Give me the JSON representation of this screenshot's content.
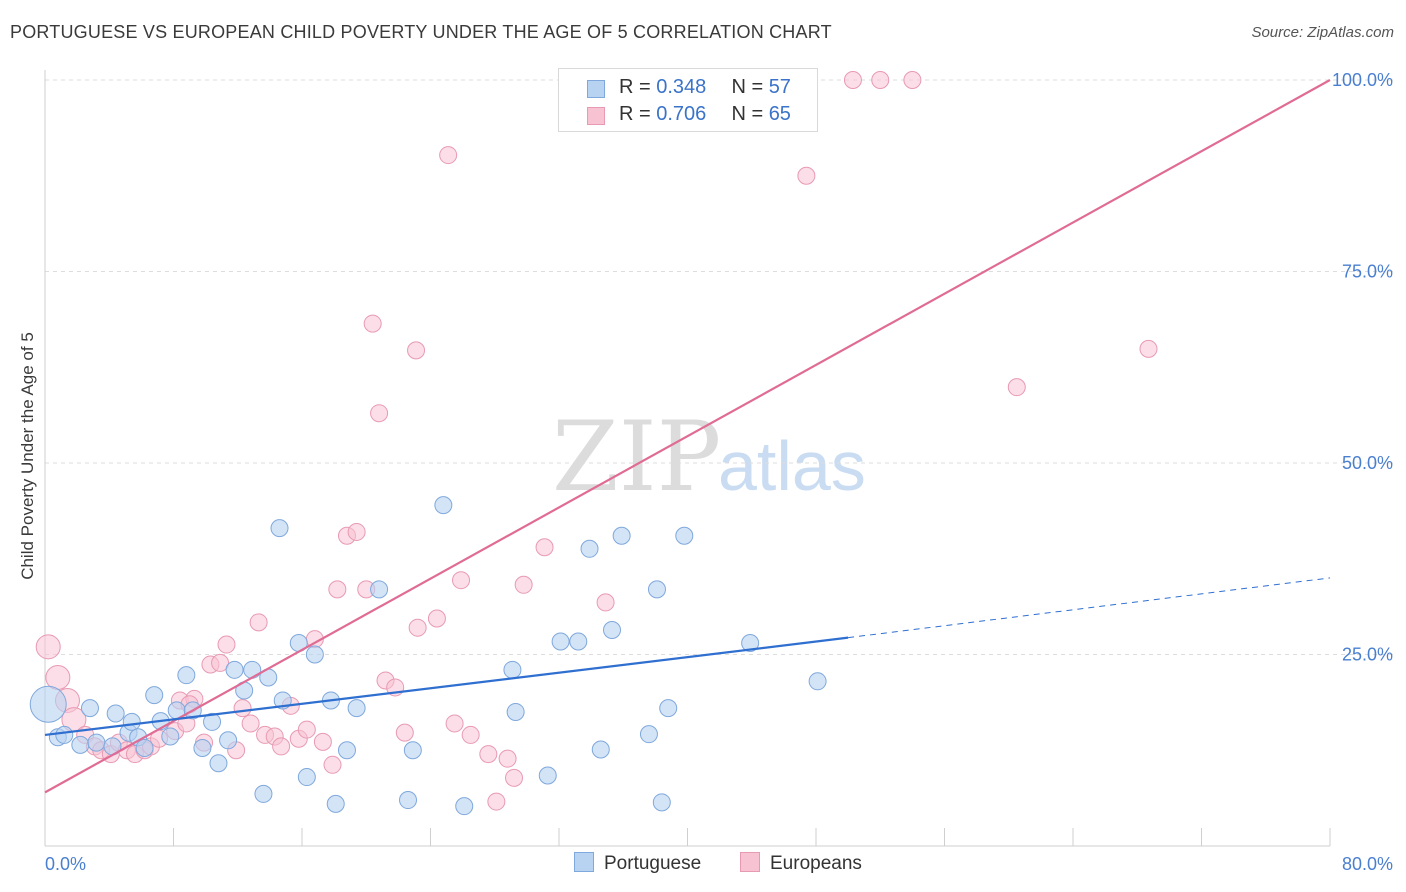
{
  "title": "PORTUGUESE VS EUROPEAN CHILD POVERTY UNDER THE AGE OF 5 CORRELATION CHART",
  "source": "Source: ZipAtlas.com",
  "watermark": {
    "zip": "ZIP",
    "atlas": "atlas"
  },
  "legend_top": [
    {
      "r_label": "R = ",
      "r_value": "0.348",
      "n_label": "N = ",
      "n_value": "57"
    },
    {
      "r_label": "R = ",
      "r_value": "0.706",
      "n_label": "N = ",
      "n_value": "65"
    }
  ],
  "legend_bottom": [
    "Portuguese",
    "Europeans"
  ],
  "colors": {
    "portuguese_fill": "#b8d2f2",
    "portuguese_stroke": "#7fa8dc",
    "portuguese_line": "#2f6fd0",
    "europeans_fill": "#f7c3d3",
    "europeans_stroke": "#e89ab3",
    "europeans_line": "#e06b94",
    "grid": "#dddddd",
    "tick_text": "#4a7fd0"
  },
  "chart_data": {
    "type": "scatter",
    "title": "PORTUGUESE VS EUROPEAN CHILD POVERTY UNDER THE AGE OF 5 CORRELATION CHART",
    "xlabel": "",
    "ylabel": "Child Poverty Under the Age of 5",
    "xlim": [
      0,
      80
    ],
    "ylim": [
      0,
      102
    ],
    "x_tick_labels": [
      "0.0%",
      "80.0%"
    ],
    "y_ticks": [
      25,
      50,
      75,
      100
    ],
    "y_tick_labels": [
      "25.0%",
      "50.0%",
      "75.0%",
      "100.0%"
    ],
    "grid": true,
    "legend_position": "top-center",
    "series": [
      {
        "name": "Portuguese",
        "r": 0.348,
        "n": 57,
        "trend": {
          "x1": 0,
          "y1": 14.5,
          "x2": 50,
          "y2": 27.2,
          "dashed_to_x": 80,
          "dashed_to_y": 35
        },
        "points": [
          [
            0.2,
            18.5,
            3
          ],
          [
            0.8,
            14.2,
            1
          ],
          [
            1.2,
            14.5,
            1
          ],
          [
            2.2,
            13.2,
            1
          ],
          [
            2.8,
            18.0,
            1
          ],
          [
            3.2,
            13.5,
            1
          ],
          [
            4.2,
            13.0,
            1
          ],
          [
            4.4,
            17.3,
            1
          ],
          [
            5.2,
            14.8,
            1
          ],
          [
            5.4,
            16.2,
            1
          ],
          [
            5.8,
            14.2,
            1
          ],
          [
            6.2,
            12.8,
            1
          ],
          [
            6.8,
            19.7,
            1
          ],
          [
            7.2,
            16.3,
            1
          ],
          [
            7.8,
            14.3,
            1
          ],
          [
            8.2,
            17.7,
            1
          ],
          [
            8.8,
            22.3,
            1
          ],
          [
            9.2,
            17.7,
            1
          ],
          [
            9.8,
            12.8,
            1
          ],
          [
            10.4,
            16.2,
            1
          ],
          [
            10.8,
            10.8,
            1
          ],
          [
            11.4,
            13.8,
            1
          ],
          [
            11.8,
            23.0,
            1
          ],
          [
            12.4,
            20.3,
            1
          ],
          [
            12.9,
            23.0,
            1
          ],
          [
            13.6,
            6.8,
            1
          ],
          [
            13.9,
            22.0,
            1
          ],
          [
            14.6,
            41.5,
            1
          ],
          [
            14.8,
            19.0,
            1
          ],
          [
            15.8,
            26.5,
            1
          ],
          [
            16.3,
            9.0,
            1
          ],
          [
            16.8,
            25.0,
            1
          ],
          [
            18.1,
            5.5,
            1
          ],
          [
            18.8,
            12.5,
            1
          ],
          [
            19.4,
            18.0,
            1
          ],
          [
            20.8,
            33.5,
            1
          ],
          [
            22.6,
            6.0,
            1
          ],
          [
            22.9,
            12.5,
            1
          ],
          [
            24.8,
            44.5,
            1
          ],
          [
            26.1,
            5.2,
            1
          ],
          [
            29.1,
            23.0,
            1
          ],
          [
            29.3,
            17.5,
            1
          ],
          [
            31.3,
            9.2,
            1
          ],
          [
            32.1,
            26.7,
            1
          ],
          [
            33.2,
            26.7,
            1
          ],
          [
            33.9,
            38.8,
            1
          ],
          [
            34.6,
            12.6,
            1
          ],
          [
            35.3,
            28.2,
            1
          ],
          [
            35.9,
            40.5,
            1
          ],
          [
            37.6,
            14.6,
            1
          ],
          [
            38.1,
            33.5,
            1
          ],
          [
            38.4,
            5.7,
            1
          ],
          [
            38.8,
            18.0,
            1
          ],
          [
            39.8,
            40.5,
            1
          ],
          [
            43.9,
            26.5,
            1
          ],
          [
            48.1,
            21.5,
            1
          ],
          [
            17.8,
            19.0,
            1
          ]
        ]
      },
      {
        "name": "Europeans",
        "r": 0.706,
        "n": 65,
        "trend": {
          "x1": 0,
          "y1": 7,
          "x2": 80,
          "y2": 100
        },
        "points": [
          [
            0.2,
            26.0,
            2
          ],
          [
            0.8,
            22.0,
            2
          ],
          [
            1.4,
            19.0,
            2
          ],
          [
            1.8,
            16.5,
            2
          ],
          [
            2.5,
            14.5,
            1
          ],
          [
            3.1,
            13.0,
            1
          ],
          [
            3.5,
            12.5,
            1
          ],
          [
            4.1,
            12.0,
            1
          ],
          [
            4.6,
            13.5,
            1
          ],
          [
            5.1,
            12.5,
            1
          ],
          [
            5.6,
            12.0,
            1
          ],
          [
            6.2,
            12.5,
            1
          ],
          [
            6.6,
            13.0,
            1
          ],
          [
            7.1,
            14.0,
            1
          ],
          [
            8.1,
            15.0,
            1
          ],
          [
            8.4,
            19.0,
            1
          ],
          [
            8.8,
            16.0,
            1
          ],
          [
            9.3,
            19.2,
            1
          ],
          [
            9.9,
            13.5,
            1
          ],
          [
            10.3,
            23.7,
            1
          ],
          [
            10.9,
            23.9,
            1
          ],
          [
            11.3,
            26.3,
            1
          ],
          [
            11.9,
            12.5,
            1
          ],
          [
            12.3,
            18.0,
            1
          ],
          [
            12.8,
            16.0,
            1
          ],
          [
            13.3,
            29.2,
            1
          ],
          [
            13.7,
            14.5,
            1
          ],
          [
            14.3,
            14.3,
            1
          ],
          [
            14.7,
            13.0,
            1
          ],
          [
            15.3,
            18.3,
            1
          ],
          [
            15.8,
            14.0,
            1
          ],
          [
            16.3,
            15.2,
            1
          ],
          [
            16.8,
            27.0,
            1
          ],
          [
            17.3,
            13.6,
            1
          ],
          [
            17.9,
            10.6,
            1
          ],
          [
            18.2,
            33.5,
            1
          ],
          [
            18.8,
            40.5,
            1
          ],
          [
            19.4,
            41.0,
            1
          ],
          [
            20.0,
            33.5,
            1
          ],
          [
            20.4,
            68.2,
            1
          ],
          [
            20.8,
            56.5,
            1
          ],
          [
            21.2,
            21.6,
            1
          ],
          [
            21.8,
            20.7,
            1
          ],
          [
            22.4,
            14.8,
            1
          ],
          [
            23.1,
            64.7,
            1
          ],
          [
            23.2,
            28.5,
            1
          ],
          [
            24.4,
            29.7,
            1
          ],
          [
            25.1,
            90.2,
            1
          ],
          [
            25.5,
            16.0,
            1
          ],
          [
            25.9,
            34.7,
            1
          ],
          [
            26.5,
            14.5,
            1
          ],
          [
            27.6,
            12.0,
            1
          ],
          [
            28.1,
            5.8,
            1
          ],
          [
            28.8,
            11.4,
            1
          ],
          [
            29.2,
            8.9,
            1
          ],
          [
            29.8,
            34.1,
            1
          ],
          [
            31.1,
            39.0,
            1
          ],
          [
            34.9,
            31.8,
            1
          ],
          [
            47.4,
            87.5,
            1
          ],
          [
            50.3,
            100,
            1
          ],
          [
            52.0,
            100,
            1
          ],
          [
            54.0,
            100,
            1
          ],
          [
            60.5,
            59.9,
            1
          ],
          [
            68.7,
            64.9,
            1
          ],
          [
            9.0,
            18.5,
            1
          ]
        ]
      }
    ]
  }
}
